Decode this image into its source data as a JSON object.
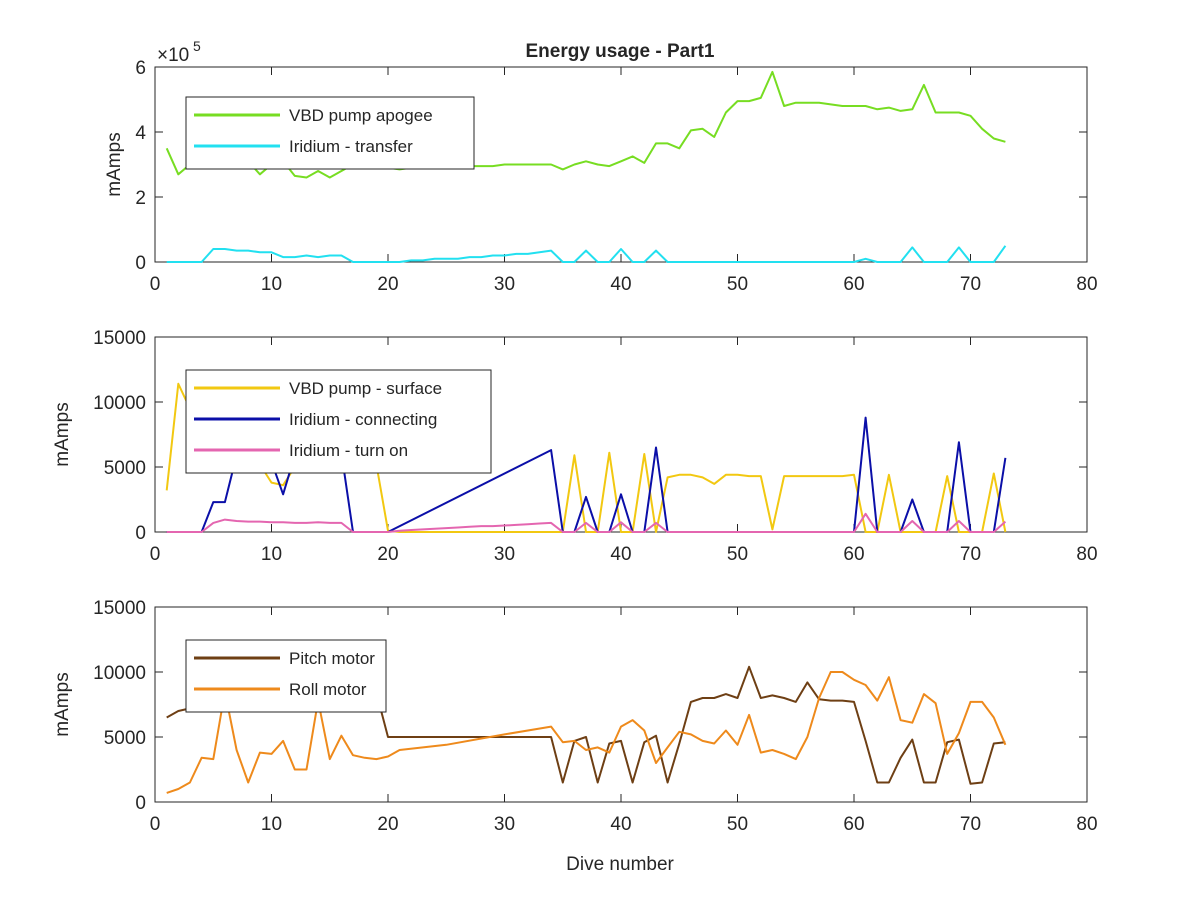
{
  "title": "Energy usage - Part1",
  "xlabel": "Dive number",
  "chart_data": [
    {
      "type": "line",
      "title": "Energy usage - Part1",
      "ylabel": "mAmps",
      "xlabel": "",
      "exponent_label": "×10",
      "exponent_power": "5",
      "xlim": [
        0,
        80
      ],
      "ylim": [
        0,
        6
      ],
      "xticks": [
        "0",
        "10",
        "20",
        "30",
        "40",
        "50",
        "60",
        "70",
        "80"
      ],
      "yticks": [
        "0",
        "2",
        "4",
        "6"
      ],
      "legend_position": "top-left",
      "series": [
        {
          "name": "VBD pump apogee",
          "color": "#77dd22",
          "x": [
            1,
            2,
            3,
            4,
            5,
            6,
            7,
            8,
            9,
            10,
            11,
            12,
            13,
            14,
            15,
            16,
            17,
            18,
            19,
            20,
            21,
            22,
            23,
            24,
            25,
            26,
            27,
            28,
            29,
            30,
            31,
            32,
            33,
            34,
            35,
            36,
            37,
            38,
            39,
            40,
            41,
            42,
            43,
            44,
            45,
            46,
            47,
            48,
            49,
            50,
            51,
            52,
            53,
            54,
            55,
            56,
            57,
            58,
            59,
            60,
            61,
            62,
            63,
            64,
            65,
            66,
            67,
            68,
            69,
            70,
            71,
            72,
            73
          ],
          "values": [
            3.5,
            2.7,
            3.0,
            3.2,
            3.3,
            3.3,
            3.2,
            3.1,
            2.7,
            3.0,
            3.1,
            2.65,
            2.6,
            2.8,
            2.6,
            2.8,
            3.0,
            3.0,
            2.95,
            2.9,
            2.85,
            2.9,
            2.9,
            2.9,
            2.9,
            2.95,
            2.95,
            2.95,
            2.95,
            3.0,
            3.0,
            3.0,
            3.0,
            3.0,
            2.85,
            3.0,
            3.1,
            3.0,
            2.95,
            3.1,
            3.25,
            3.05,
            3.65,
            3.65,
            3.5,
            4.05,
            4.1,
            3.85,
            4.6,
            4.95,
            4.95,
            5.05,
            5.85,
            4.8,
            4.9,
            4.9,
            4.9,
            4.85,
            4.8,
            4.8,
            4.8,
            4.7,
            4.75,
            4.65,
            4.7,
            5.45,
            4.6,
            4.6,
            4.6,
            4.5,
            4.1,
            3.8,
            3.7
          ]
        },
        {
          "name": "Iridium - transfer",
          "color": "#22e0f0",
          "x": [
            1,
            4,
            5,
            6,
            7,
            8,
            9,
            10,
            11,
            12,
            13,
            14,
            15,
            16,
            17,
            18,
            19,
            20,
            21,
            22,
            23,
            24,
            25,
            26,
            27,
            28,
            29,
            30,
            31,
            32,
            33,
            34,
            35,
            36,
            37,
            38,
            39,
            40,
            41,
            42,
            43,
            44,
            45,
            50,
            55,
            60,
            61,
            62,
            63,
            64,
            65,
            66,
            67,
            68,
            69,
            70,
            71,
            72,
            73
          ],
          "values": [
            0,
            0,
            0.4,
            0.4,
            0.35,
            0.35,
            0.3,
            0.3,
            0.15,
            0.15,
            0.2,
            0.15,
            0.2,
            0.2,
            0,
            0,
            0,
            0,
            0,
            0.05,
            0.05,
            0.1,
            0.1,
            0.1,
            0.15,
            0.15,
            0.2,
            0.2,
            0.25,
            0.25,
            0.3,
            0.35,
            0,
            0,
            0.35,
            0,
            0,
            0.4,
            0,
            0,
            0.35,
            0,
            0,
            0,
            0,
            0,
            0.1,
            0,
            0,
            0,
            0.45,
            0,
            0,
            0,
            0.45,
            0,
            0,
            0,
            0.5
          ]
        }
      ]
    },
    {
      "type": "line",
      "title": "",
      "ylabel": "mAmps",
      "xlabel": "",
      "xlim": [
        0,
        80
      ],
      "ylim": [
        0,
        15000
      ],
      "xticks": [
        "0",
        "10",
        "20",
        "30",
        "40",
        "50",
        "60",
        "70",
        "80"
      ],
      "yticks": [
        "0",
        "5000",
        "10000",
        "15000"
      ],
      "legend_position": "top-left",
      "series": [
        {
          "name": "VBD pump - surface",
          "color": "#f2c811",
          "x": [
            1,
            2,
            3,
            4,
            5,
            6,
            7,
            8,
            9,
            10,
            11,
            12,
            13,
            14,
            15,
            16,
            17,
            18,
            19,
            20,
            21,
            22,
            23,
            24,
            25,
            26,
            27,
            28,
            29,
            30,
            31,
            32,
            33,
            34,
            35,
            36,
            37,
            38,
            39,
            40,
            41,
            42,
            43,
            44,
            45,
            46,
            47,
            48,
            49,
            50,
            51,
            52,
            53,
            54,
            55,
            56,
            57,
            58,
            59,
            60,
            61,
            62,
            63,
            64,
            65,
            66,
            67,
            68,
            69,
            70,
            71,
            72,
            73
          ],
          "values": [
            3200,
            11400,
            9500,
            7000,
            5600,
            5000,
            5200,
            5500,
            5200,
            3800,
            3600,
            5000,
            5800,
            6600,
            5600,
            5000,
            5200,
            5300,
            5200,
            100,
            0,
            0,
            0,
            0,
            0,
            0,
            0,
            0,
            0,
            0,
            0,
            0,
            0,
            0,
            0,
            5900,
            0,
            0,
            6100,
            0,
            0,
            6000,
            0,
            4200,
            4400,
            4400,
            4200,
            3700,
            4400,
            4400,
            4300,
            4300,
            200,
            4300,
            4300,
            4300,
            4300,
            4300,
            4300,
            4400,
            0,
            0,
            4400,
            0,
            0,
            0,
            0,
            4300,
            0,
            0,
            0,
            4500,
            0
          ]
        },
        {
          "name": "Iridium - connecting",
          "color": "#0b0fa8",
          "x": [
            1,
            4,
            5,
            6,
            7,
            8,
            9,
            10,
            11,
            12,
            13,
            14,
            15,
            16,
            17,
            18,
            19,
            20,
            34,
            35,
            36,
            37,
            38,
            39,
            40,
            41,
            42,
            43,
            44,
            45,
            50,
            55,
            60,
            61,
            62,
            63,
            64,
            65,
            66,
            67,
            68,
            69,
            70,
            71,
            72,
            73
          ],
          "values": [
            0,
            0,
            2300,
            2300,
            5900,
            6600,
            6600,
            5400,
            2900,
            5900,
            6600,
            6600,
            6600,
            6100,
            0,
            0,
            0,
            0,
            6300,
            0,
            0,
            2700,
            0,
            0,
            2900,
            0,
            0,
            6500,
            0,
            0,
            0,
            0,
            0,
            8800,
            0,
            0,
            0,
            2500,
            0,
            0,
            0,
            6900,
            0,
            0,
            0,
            5700
          ]
        },
        {
          "name": "Iridium - turn on",
          "color": "#e466b0",
          "x": [
            1,
            4,
            5,
            6,
            7,
            8,
            9,
            10,
            11,
            12,
            13,
            14,
            15,
            16,
            17,
            18,
            19,
            20,
            21,
            22,
            23,
            24,
            25,
            26,
            27,
            28,
            29,
            30,
            31,
            32,
            33,
            34,
            35,
            36,
            37,
            38,
            39,
            40,
            41,
            42,
            43,
            44,
            45,
            50,
            55,
            60,
            61,
            62,
            63,
            64,
            65,
            66,
            67,
            68,
            69,
            70,
            71,
            72,
            73
          ],
          "values": [
            0,
            0,
            700,
            950,
            850,
            800,
            800,
            750,
            750,
            700,
            700,
            750,
            700,
            700,
            0,
            0,
            0,
            0,
            100,
            150,
            200,
            250,
            300,
            350,
            400,
            450,
            450,
            500,
            550,
            600,
            650,
            700,
            0,
            0,
            700,
            0,
            0,
            750,
            0,
            0,
            700,
            0,
            0,
            0,
            0,
            0,
            1400,
            0,
            0,
            0,
            850,
            0,
            0,
            0,
            850,
            0,
            0,
            0,
            800
          ]
        }
      ]
    },
    {
      "type": "line",
      "title": "",
      "ylabel": "mAmps",
      "xlabel": "Dive number",
      "xlim": [
        0,
        80
      ],
      "ylim": [
        0,
        15000
      ],
      "xticks": [
        "0",
        "10",
        "20",
        "30",
        "40",
        "50",
        "60",
        "70",
        "80"
      ],
      "yticks": [
        "0",
        "5000",
        "10000",
        "15000"
      ],
      "legend_position": "top-left",
      "series": [
        {
          "name": "Pitch motor",
          "color": "#6e3f14",
          "x": [
            1,
            2,
            3,
            4,
            5,
            6,
            7,
            8,
            9,
            10,
            11,
            12,
            13,
            14,
            15,
            16,
            17,
            18,
            19,
            20,
            21,
            25,
            30,
            34,
            35,
            36,
            37,
            38,
            39,
            40,
            41,
            42,
            43,
            44,
            45,
            46,
            47,
            48,
            49,
            50,
            51,
            52,
            53,
            54,
            55,
            56,
            57,
            58,
            59,
            60,
            61,
            62,
            63,
            64,
            65,
            66,
            67,
            68,
            69,
            70,
            71,
            72,
            73
          ],
          "values": [
            6500,
            7000,
            7200,
            7300,
            8400,
            8900,
            8300,
            8300,
            8600,
            8400,
            8300,
            8000,
            8700,
            8500,
            8400,
            8400,
            8400,
            8400,
            8400,
            5000,
            5000,
            5000,
            5000,
            5000,
            1500,
            4700,
            5000,
            1500,
            4500,
            4700,
            1500,
            4600,
            5100,
            1500,
            4500,
            7700,
            8000,
            8000,
            8300,
            8000,
            10400,
            8000,
            8200,
            8000,
            7700,
            9200,
            7900,
            7800,
            7800,
            7700,
            4700,
            1500,
            1500,
            3400,
            4800,
            1500,
            1500,
            4600,
            4800,
            1400,
            1500,
            4500,
            4600
          ]
        },
        {
          "name": "Roll motor",
          "color": "#ee8a1c",
          "x": [
            1,
            2,
            3,
            4,
            5,
            6,
            7,
            8,
            9,
            10,
            11,
            12,
            13,
            14,
            15,
            16,
            17,
            18,
            19,
            20,
            21,
            25,
            30,
            34,
            35,
            36,
            37,
            38,
            39,
            40,
            41,
            42,
            43,
            44,
            45,
            46,
            47,
            48,
            49,
            50,
            51,
            52,
            53,
            54,
            55,
            56,
            57,
            58,
            59,
            60,
            61,
            62,
            63,
            64,
            65,
            66,
            67,
            68,
            69,
            70,
            71,
            72,
            73
          ],
          "values": [
            700,
            1000,
            1500,
            3400,
            3300,
            8500,
            4000,
            1500,
            3800,
            3700,
            4700,
            2500,
            2500,
            7800,
            3300,
            5100,
            3600,
            3400,
            3300,
            3500,
            4000,
            4400,
            5200,
            5800,
            4600,
            4700,
            4000,
            4200,
            3800,
            5800,
            6300,
            5500,
            3000,
            4200,
            5400,
            5200,
            4700,
            4500,
            5500,
            4400,
            6700,
            3800,
            4000,
            3700,
            3300,
            5000,
            8000,
            10000,
            10000,
            9400,
            9000,
            7800,
            9600,
            6300,
            6100,
            8300,
            7600,
            3700,
            5300,
            7700,
            7700,
            6500,
            4400
          ]
        }
      ]
    }
  ]
}
